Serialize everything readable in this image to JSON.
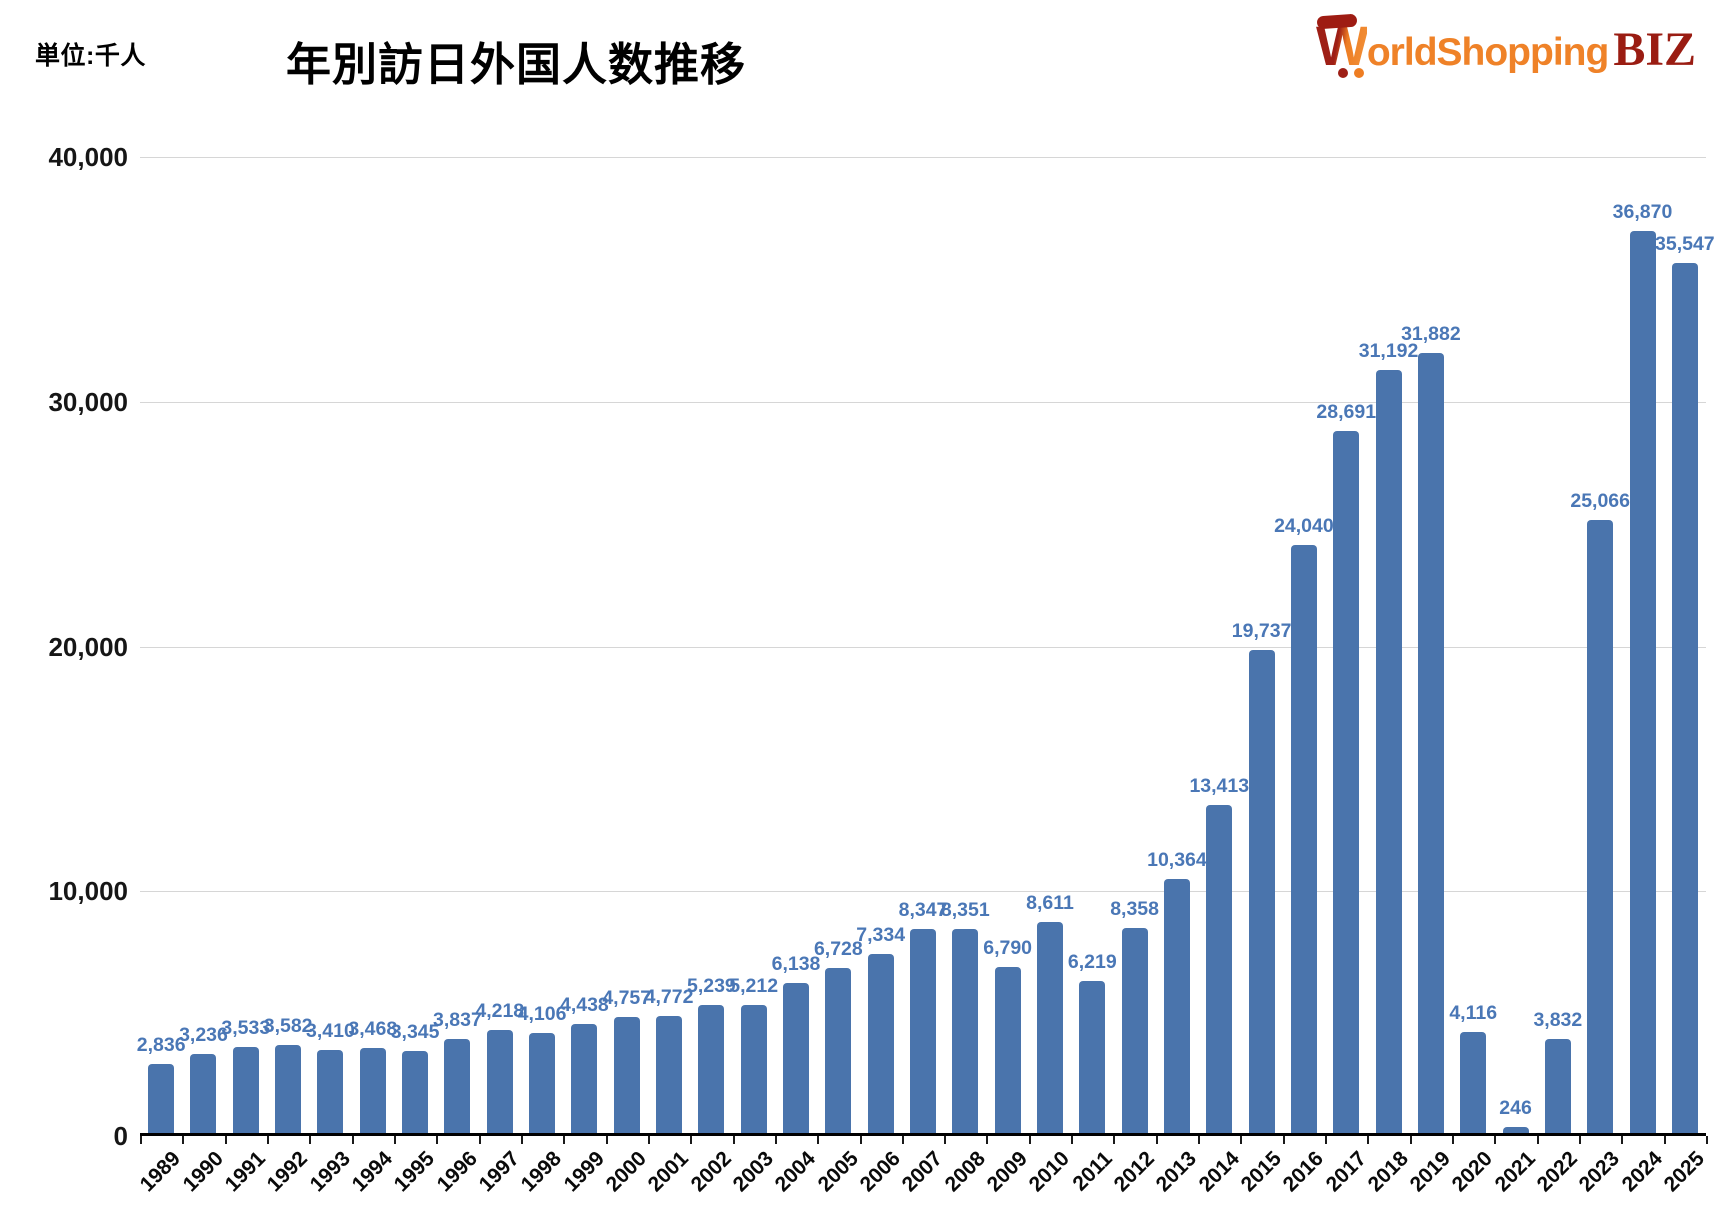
{
  "meta": {
    "title": "年別訪日外国人数推移",
    "unit_label": "単位:千人"
  },
  "logo": {
    "w": "W",
    "rest": "orldShopping",
    "suffix": "BIZ",
    "orange": "#ef8228",
    "dark_red": "#9a1c12"
  },
  "chart_data": {
    "type": "bar",
    "title": "年別訪日外国人数推移",
    "unit": "千人",
    "categories": [
      "1989",
      "1990",
      "1991",
      "1992",
      "1993",
      "1994",
      "1995",
      "1996",
      "1997",
      "1998",
      "1999",
      "2000",
      "2001",
      "2002",
      "2003",
      "2004",
      "2005",
      "2006",
      "2007",
      "2008",
      "2009",
      "2010",
      "2011",
      "2012",
      "2013",
      "2014",
      "2015",
      "2016",
      "2017",
      "2018",
      "2019",
      "2020",
      "2021",
      "2022",
      "2023",
      "2024",
      "2025"
    ],
    "values": [
      2836,
      3236,
      3533,
      3582,
      3410,
      3468,
      3345,
      3837,
      4218,
      4106,
      4438,
      4757,
      4772,
      5239,
      5212,
      6138,
      6728,
      7334,
      8347,
      8351,
      6790,
      8611,
      6219,
      8358,
      10364,
      13413,
      19737,
      24040,
      28691,
      31192,
      31882,
      4116,
      246,
      3832,
      25066,
      36870,
      35547
    ],
    "value_labels": [
      "2,836",
      "3,236",
      "3,533",
      "3,582",
      "3,410",
      "3,468",
      "3,345",
      "3,837",
      "4,218",
      "4,106",
      "4,438",
      "4,757",
      "4,772",
      "5,239",
      "5,212",
      "6,138",
      "6,728",
      "7,334",
      "8,347",
      "8,351",
      "6,790",
      "8,611",
      "6,219",
      "8,358",
      "10,364",
      "13,413",
      "19,737",
      "24,040",
      "28,691",
      "31,192",
      "31,882",
      "4,116",
      "246",
      "3,832",
      "25,066",
      "36,870",
      "35,547"
    ],
    "ylim": [
      0,
      40000
    ],
    "yticks": [
      {
        "value": 40000,
        "label": "40,000"
      },
      {
        "value": 30000,
        "label": "30,000"
      },
      {
        "value": 20000,
        "label": "20,000"
      },
      {
        "value": 10000,
        "label": "10,000"
      },
      {
        "value": 0,
        "label": "0"
      }
    ],
    "grid": true,
    "legend": "none",
    "xlabel": "",
    "ylabel": "",
    "bar_color": "#4a74ac",
    "value_label_color": "#4a77b6"
  }
}
